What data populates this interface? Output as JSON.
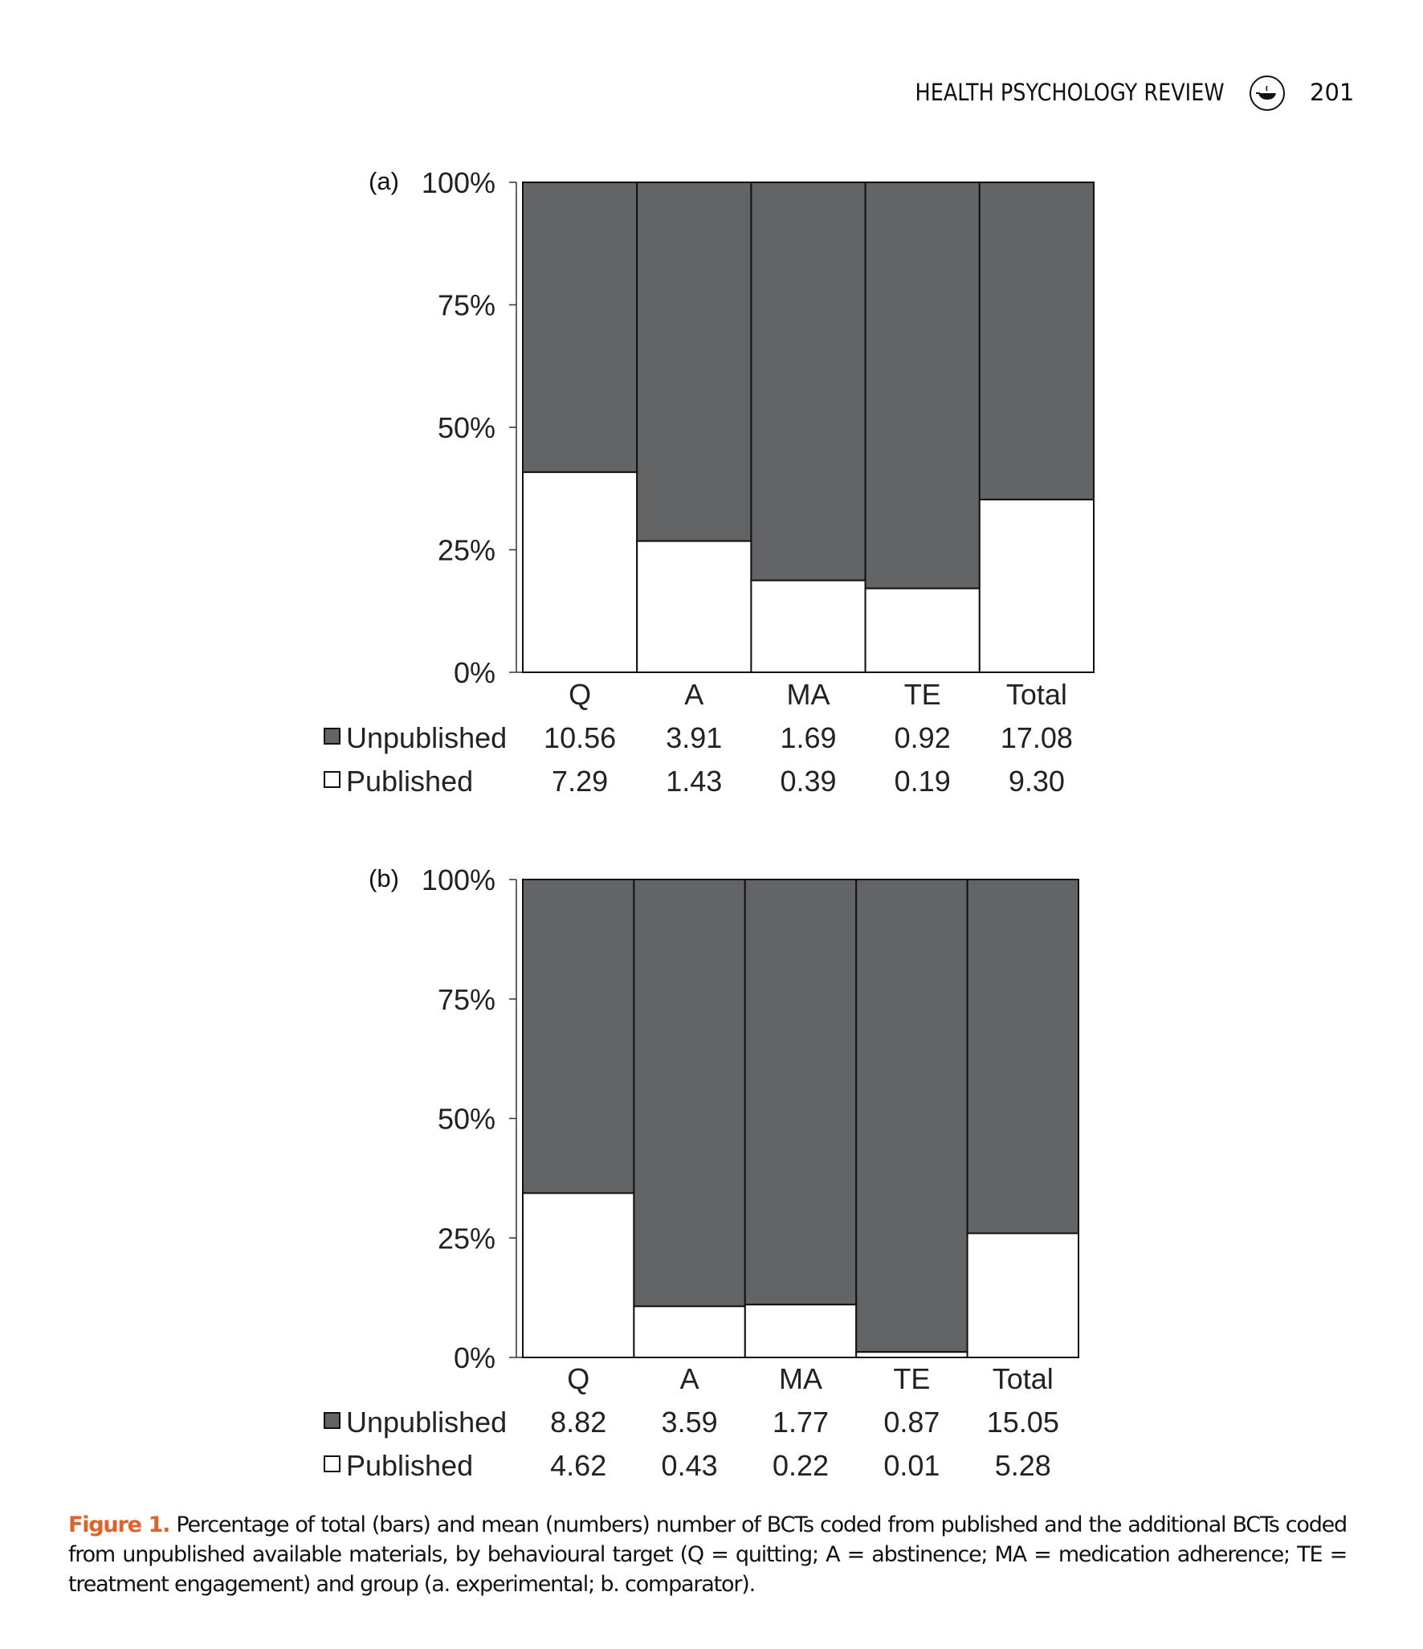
{
  "header": {
    "journal": "HEALTH PSYCHOLOGY REVIEW",
    "page": "201",
    "logo_icon": "publisher-logo-icon"
  },
  "colors": {
    "unpublished": "#636466",
    "published": "#ffffff",
    "caption_label": "#e0622a"
  },
  "chart_data": [
    {
      "type": "bar",
      "stacked_percent": true,
      "panel_label": "(a)",
      "categories": [
        "Q",
        "A",
        "MA",
        "TE",
        "Total"
      ],
      "yticks": [
        "0%",
        "25%",
        "50%",
        "75%",
        "100%"
      ],
      "ylim": [
        0,
        100
      ],
      "series": [
        {
          "name": "Unpublished",
          "values": [
            "10.56",
            "3.91",
            "1.69",
            "0.92",
            "17.08"
          ]
        },
        {
          "name": "Published",
          "values": [
            "7.29",
            "1.43",
            "0.39",
            "0.19",
            "9.30"
          ]
        }
      ]
    },
    {
      "type": "bar",
      "stacked_percent": true,
      "panel_label": "(b)",
      "categories": [
        "Q",
        "A",
        "MA",
        "TE",
        "Total"
      ],
      "yticks": [
        "0%",
        "25%",
        "50%",
        "75%",
        "100%"
      ],
      "ylim": [
        0,
        100
      ],
      "series": [
        {
          "name": "Unpublished",
          "values": [
            "8.82",
            "3.59",
            "1.77",
            "0.87",
            "15.05"
          ]
        },
        {
          "name": "Published",
          "values": [
            "4.62",
            "0.43",
            "0.22",
            "0.01",
            "5.28"
          ]
        }
      ]
    }
  ],
  "caption": {
    "label": "Figure 1.",
    "text": "Percentage of total (bars) and mean (numbers) number of BCTs coded from published and the additional BCTs coded from unpublished available materials, by behavioural target (Q = quitting; A = abstinence; MA = medication adherence; TE = treatment engagement) and group (a. experimental; b. comparator)."
  }
}
